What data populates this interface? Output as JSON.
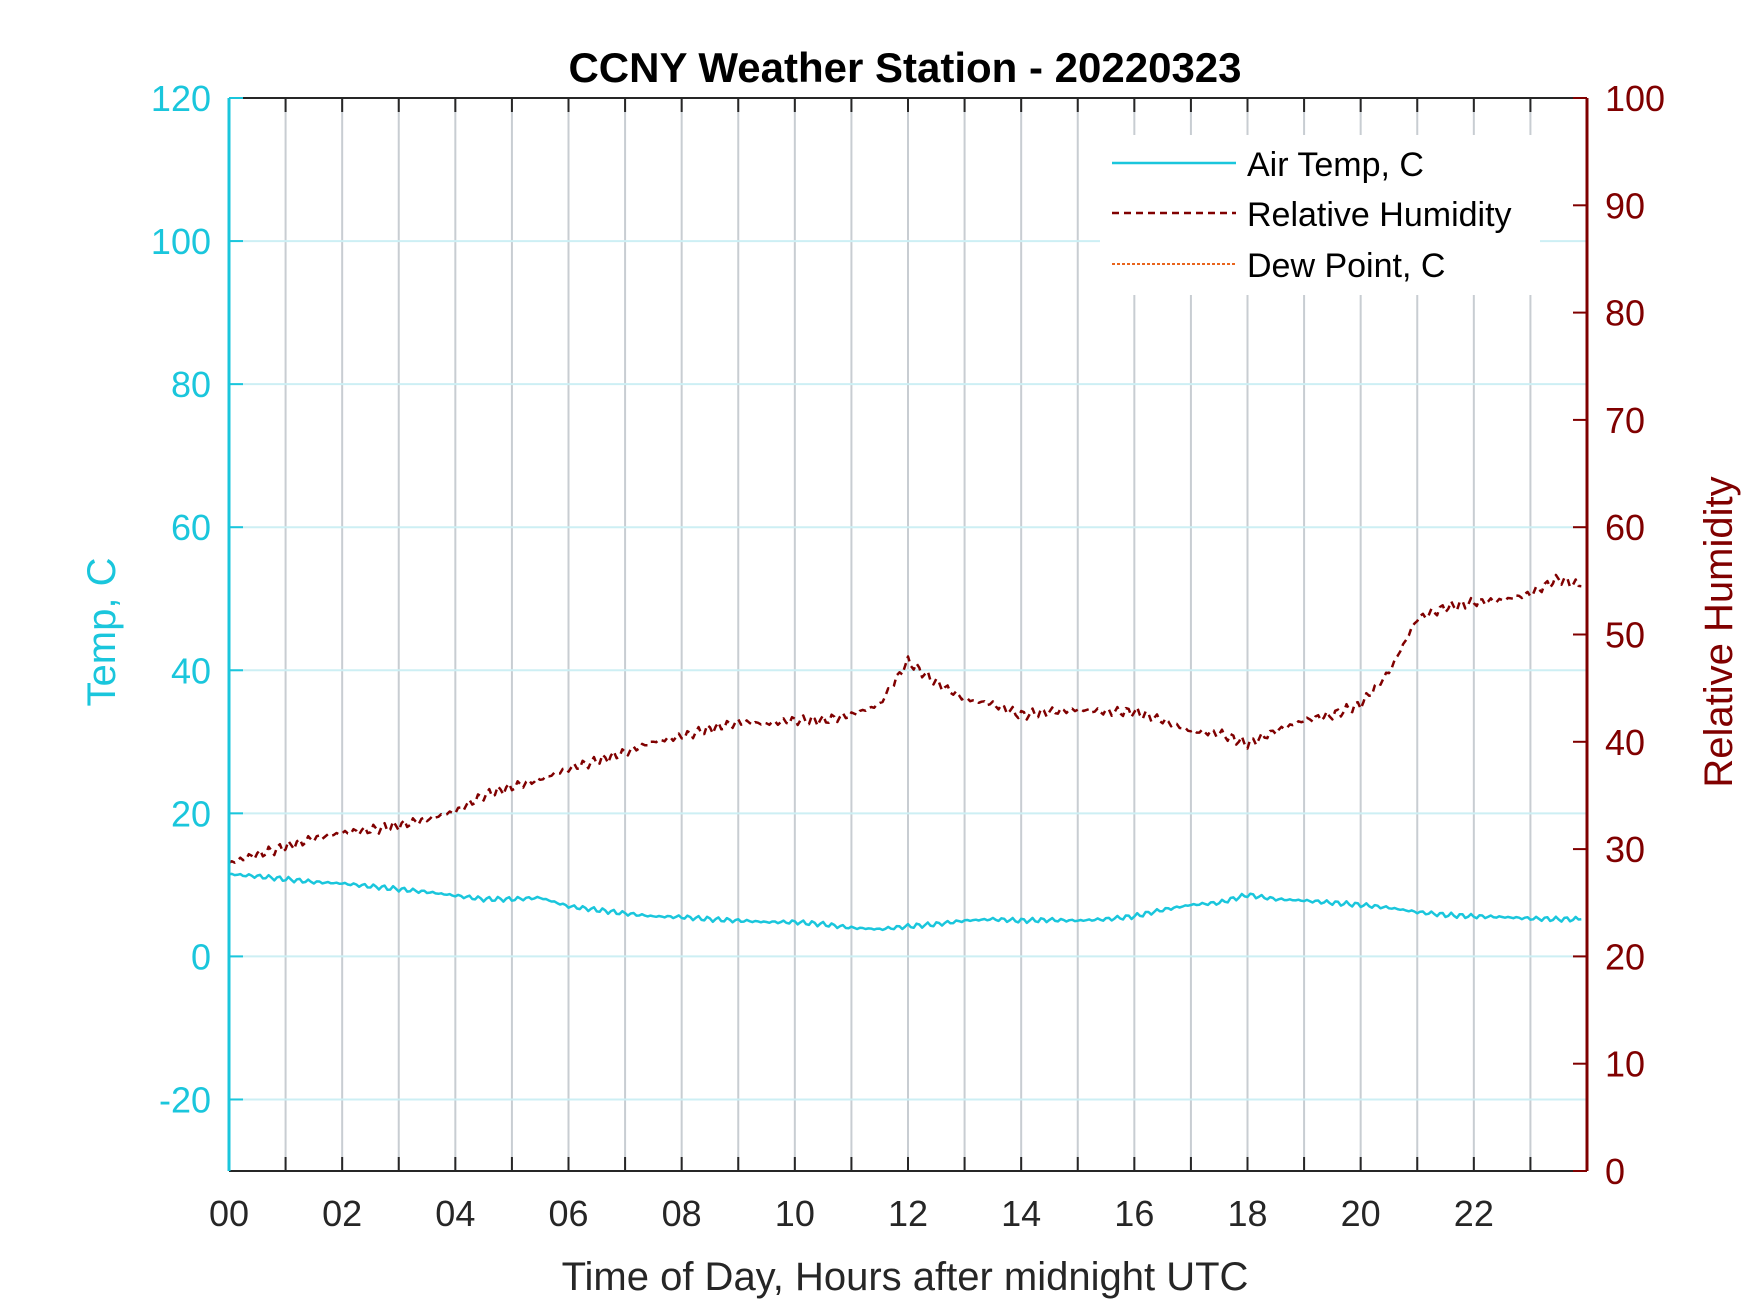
{
  "chart_data": {
    "type": "line",
    "title": "CCNY Weather Station - 20220323",
    "xlabel": "Time of Day, Hours after midnight UTC",
    "ylabel_left": "Temp, C",
    "ylabel_right": "Relative Humidity",
    "xlim": [
      0,
      24
    ],
    "ylim_left": [
      -30,
      120
    ],
    "ylim_right": [
      0,
      100
    ],
    "x_ticks": [
      0,
      2,
      4,
      6,
      8,
      10,
      12,
      14,
      16,
      18,
      20,
      22
    ],
    "x_tick_labels": [
      "00",
      "02",
      "04",
      "06",
      "08",
      "10",
      "12",
      "14",
      "16",
      "18",
      "20",
      "22"
    ],
    "y_ticks_left": [
      -20,
      0,
      20,
      40,
      60,
      80,
      100,
      120
    ],
    "y_tick_labels_left": [
      "-20",
      "0",
      "20",
      "40",
      "60",
      "80",
      "100",
      "120"
    ],
    "y_ticks_right": [
      0,
      10,
      20,
      30,
      40,
      50,
      60,
      70,
      80,
      90,
      100
    ],
    "y_tick_labels_right": [
      "0",
      "10",
      "20",
      "30",
      "40",
      "50",
      "60",
      "70",
      "80",
      "90",
      "100"
    ],
    "grid": true,
    "legend_position": "top-right",
    "colors": {
      "left_axis": "#1ac6dc",
      "right_axis": "#800000",
      "air_temp": "#1ac6dc",
      "humidity": "#800000",
      "dew_point": "#e8641c",
      "grid_vertical": "#c8cdd2",
      "grid_horizontal": "#cdeff4"
    },
    "series": [
      {
        "name": "Air Temp, C",
        "axis": "left",
        "style": "solid",
        "x": [
          0,
          0.5,
          1,
          1.5,
          2,
          2.5,
          3,
          3.5,
          4,
          4.5,
          5,
          5.5,
          6,
          6.5,
          7,
          7.5,
          8,
          8.5,
          9,
          9.5,
          10,
          10.5,
          11,
          11.5,
          12,
          12.5,
          13,
          13.5,
          14,
          14.5,
          15,
          15.5,
          16,
          16.5,
          17,
          17.5,
          18,
          18.5,
          19,
          19.5,
          20,
          20.5,
          21,
          21.5,
          22,
          22.5,
          23,
          23.5,
          23.9
        ],
        "y": [
          11.5,
          11.2,
          10.8,
          10.4,
          10.2,
          9.8,
          9.4,
          9.0,
          8.5,
          8.0,
          8.0,
          8.2,
          7.0,
          6.5,
          6.0,
          5.6,
          5.5,
          5.2,
          5.0,
          4.8,
          4.8,
          4.5,
          4.0,
          3.8,
          4.2,
          4.5,
          5.0,
          5.2,
          5.0,
          5.1,
          5.0,
          5.2,
          5.6,
          6.5,
          7.2,
          7.5,
          8.6,
          8.0,
          7.8,
          7.5,
          7.2,
          6.8,
          6.2,
          5.8,
          5.6,
          5.5,
          5.3,
          5.2,
          5.2
        ]
      },
      {
        "name": "Relative Humidity",
        "axis": "right",
        "style": "dashed",
        "x": [
          0,
          0.5,
          1,
          1.5,
          2,
          2.5,
          3,
          3.5,
          4,
          4.5,
          5,
          5.5,
          6,
          6.5,
          7,
          7.5,
          8,
          8.5,
          9,
          9.5,
          10,
          10.5,
          11,
          11.5,
          12,
          12.5,
          13,
          13.5,
          14,
          14.5,
          15,
          15.5,
          16,
          16.5,
          17,
          17.5,
          18,
          18.5,
          19,
          19.5,
          20,
          20.5,
          21,
          21.5,
          22,
          22.5,
          23,
          23.5,
          23.9
        ],
        "y": [
          28.7,
          29.5,
          30.2,
          31.0,
          31.5,
          31.8,
          32.2,
          32.8,
          33.5,
          35.0,
          35.8,
          36.5,
          37.5,
          38.2,
          39.0,
          40.0,
          40.5,
          41.2,
          41.8,
          41.7,
          42.0,
          42.0,
          42.5,
          43.5,
          47.5,
          45.5,
          44.0,
          43.5,
          42.5,
          42.8,
          43.0,
          42.8,
          42.8,
          42.0,
          41.0,
          40.8,
          39.8,
          41.0,
          42.0,
          42.5,
          43.5,
          46.5,
          51.5,
          52.5,
          53.0,
          53.2,
          53.8,
          55.2,
          54.5
        ]
      },
      {
        "name": "Dew Point, C",
        "axis": "left",
        "style": "dashdot",
        "x": [],
        "y": []
      }
    ]
  }
}
